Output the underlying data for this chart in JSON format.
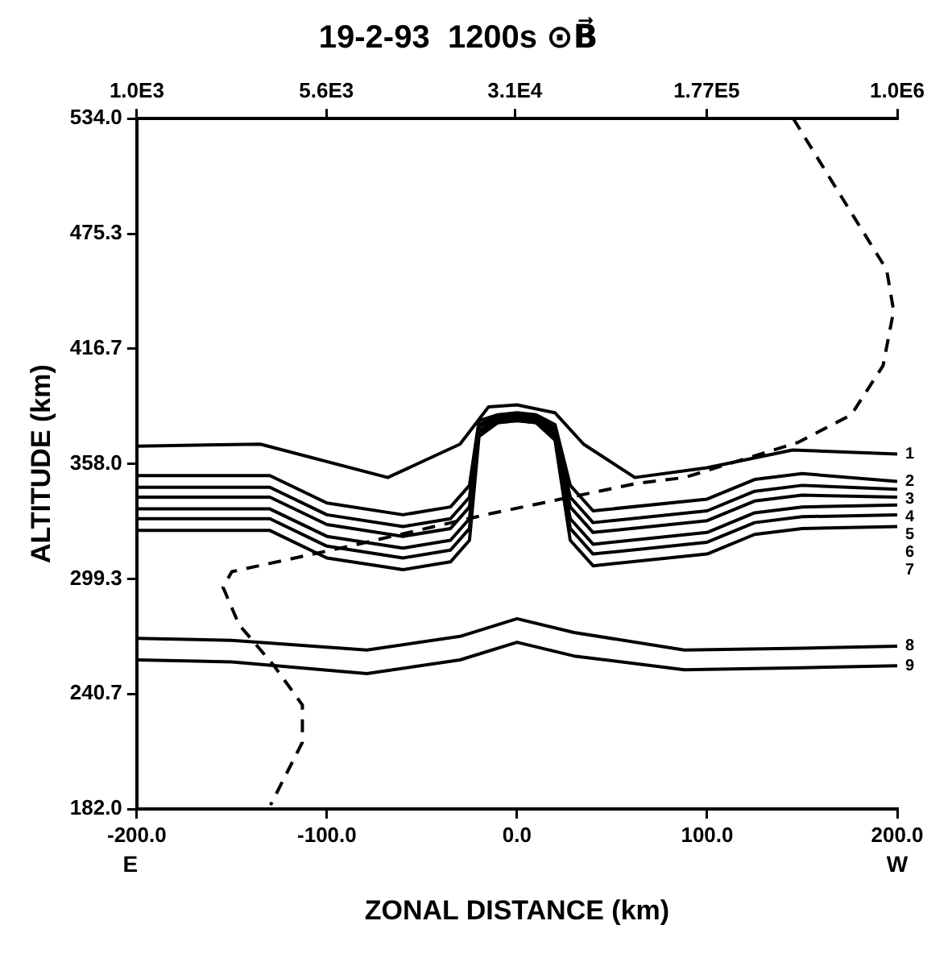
{
  "chart_data": {
    "type": "line",
    "title": "19-2-93  1200s ⊙B⃗",
    "xlabel": "ZONAL DISTANCE (km)",
    "ylabel": "ALTITUDE (km)",
    "xlim": [
      -200,
      200
    ],
    "xticks": [
      {
        "value": -200,
        "label": "-200.0"
      },
      {
        "value": -100,
        "label": "-100.0"
      },
      {
        "value": 0,
        "label": "0.0"
      },
      {
        "value": 100,
        "label": "100.0"
      },
      {
        "value": 200,
        "label": "200.0"
      }
    ],
    "ylim": [
      182,
      534
    ],
    "yticks": [
      {
        "value": 182,
        "label": "182.0"
      },
      240.7,
      299.3,
      {
        "value": 358,
        "label": "358.0"
      },
      416.7,
      475.3,
      {
        "value": 534,
        "label": "534.0"
      }
    ],
    "x2lim": [
      1000,
      1000000
    ],
    "x2ticks": [
      {
        "value": 1000,
        "label": "1.0E3"
      },
      {
        "value": 5600,
        "label": "5.6E3"
      },
      {
        "value": 31000,
        "label": "3.1E4"
      },
      {
        "value": 177000,
        "label": "1.77E5"
      },
      {
        "value": 1000000,
        "label": "1.0E6"
      }
    ],
    "log": "x2",
    "grid": false,
    "legend": false,
    "marker": "none",
    "annotations": [
      "E",
      "W"
    ],
    "series": [
      {
        "name": "1",
        "color": "#000000",
        "x": [
          -200,
          -135,
          -68,
          -30,
          -15,
          0,
          20,
          35,
          62,
          100,
          145,
          200
        ],
        "values": [
          367,
          368,
          351,
          368,
          387,
          388,
          384,
          368,
          351,
          356,
          365,
          363
        ]
      },
      {
        "name": "2",
        "color": "#000000",
        "x": [
          -200,
          -130,
          -100,
          -60,
          -35,
          -25,
          -20,
          -10,
          0,
          10,
          20,
          28,
          40,
          100,
          125,
          150,
          200
        ],
        "values": [
          352,
          352,
          338,
          332,
          336,
          347,
          380,
          383,
          384,
          383,
          378,
          347,
          334,
          340,
          350,
          353,
          349
        ]
      },
      {
        "name": "3",
        "color": "#000000",
        "x": [
          -200,
          -130,
          -100,
          -60,
          -35,
          -25,
          -20,
          -10,
          0,
          10,
          20,
          28,
          40,
          100,
          125,
          150,
          200
        ],
        "values": [
          346,
          346,
          332,
          326,
          330,
          341,
          378,
          382,
          383,
          382,
          376,
          341,
          328,
          334,
          344,
          347,
          345
        ]
      },
      {
        "name": "4",
        "color": "#000000",
        "x": [
          -200,
          -130,
          -100,
          -60,
          -35,
          -25,
          -20,
          -10,
          0,
          10,
          20,
          28,
          40,
          100,
          125,
          150,
          200
        ],
        "values": [
          341,
          341,
          327,
          321,
          325,
          336,
          377,
          381,
          382,
          381,
          375,
          336,
          323,
          329,
          339,
          342,
          341
        ]
      },
      {
        "name": "5",
        "color": "#000000",
        "x": [
          -200,
          -130,
          -100,
          -60,
          -35,
          -25,
          -20,
          -10,
          0,
          10,
          20,
          28,
          40,
          100,
          125,
          150,
          200
        ],
        "values": [
          335,
          335,
          321,
          315,
          319,
          330,
          375,
          380,
          381,
          380,
          373,
          330,
          317,
          323,
          333,
          336,
          337
        ]
      },
      {
        "name": "6",
        "color": "#000000",
        "x": [
          -200,
          -130,
          -100,
          -60,
          -35,
          -25,
          -20,
          -10,
          0,
          10,
          20,
          28,
          40,
          100,
          125,
          150,
          200
        ],
        "values": [
          330,
          330,
          316,
          310,
          314,
          325,
          374,
          379,
          380,
          379,
          372,
          325,
          312,
          318,
          328,
          331,
          332
        ]
      },
      {
        "name": "7",
        "color": "#000000",
        "x": [
          -200,
          -130,
          -100,
          -60,
          -35,
          -25,
          -20,
          -10,
          0,
          10,
          20,
          28,
          40,
          100,
          125,
          150,
          200
        ],
        "values": [
          324,
          324,
          310,
          304,
          308,
          319,
          372,
          379,
          380,
          379,
          370,
          319,
          306,
          312,
          322,
          325,
          326
        ]
      },
      {
        "name": "8",
        "color": "#000000",
        "x": [
          -200,
          -150,
          -79,
          -30,
          0,
          30,
          88,
          150,
          200
        ],
        "values": [
          269,
          268,
          263,
          270,
          279,
          272,
          263,
          264,
          265
        ]
      },
      {
        "name": "9",
        "color": "#000000",
        "x": [
          -200,
          -150,
          -79,
          -30,
          0,
          30,
          88,
          150,
          200
        ],
        "values": [
          258,
          257,
          251,
          258,
          267,
          260,
          253,
          254,
          255
        ]
      },
      {
        "color": "#000000",
        "axis": "x2",
        "line_style": "dashed",
        "x": [
          389000,
          610000,
          908000,
          968000,
          879000,
          659000,
          408000,
          145000,
          93800,
          23700,
          6900,
          2370,
          2190,
          2530,
          3480,
          4500,
          4500,
          3370
        ],
        "values": [
          534,
          493,
          457,
          436,
          408,
          383,
          369,
          351,
          348,
          332,
          316,
          303,
          295,
          276,
          255,
          235,
          216,
          184
        ]
      }
    ]
  }
}
